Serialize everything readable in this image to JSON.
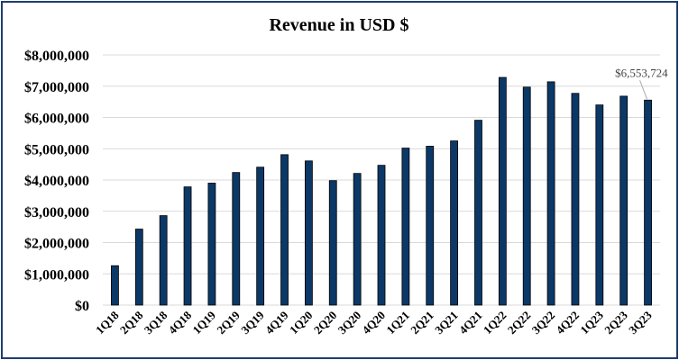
{
  "chart_data": {
    "type": "bar",
    "title": "Revenue in USD $",
    "xlabel": "",
    "ylabel": "",
    "ylim": [
      0,
      8000000
    ],
    "yticks": [
      "$0",
      "$1,000,000",
      "$2,000,000",
      "$3,000,000",
      "$4,000,000",
      "$5,000,000",
      "$6,000,000",
      "$7,000,000",
      "$8,000,000"
    ],
    "grid": true,
    "categories": [
      "1Q18",
      "2Q18",
      "3Q18",
      "4Q18",
      "1Q19",
      "2Q19",
      "3Q19",
      "4Q19",
      "1Q20",
      "2Q20",
      "3Q20",
      "4Q20",
      "1Q21",
      "2Q21",
      "3Q21",
      "4Q21",
      "1Q22",
      "2Q22",
      "3Q22",
      "4Q22",
      "1Q23",
      "2Q23",
      "3Q23"
    ],
    "values": [
      1260000,
      2430000,
      2860000,
      3780000,
      3900000,
      4240000,
      4410000,
      4810000,
      4610000,
      3980000,
      4210000,
      4470000,
      5020000,
      5080000,
      5250000,
      5910000,
      7280000,
      6970000,
      7140000,
      6770000,
      6400000,
      6680000,
      6553724
    ],
    "data_labels": [
      {
        "index": 22,
        "text": "$6,553,724"
      }
    ],
    "bar_color": "#0b3866",
    "bar_edge": "#000000",
    "grid_color": "#d9d9d9",
    "border_color": "#1f3d6b"
  }
}
